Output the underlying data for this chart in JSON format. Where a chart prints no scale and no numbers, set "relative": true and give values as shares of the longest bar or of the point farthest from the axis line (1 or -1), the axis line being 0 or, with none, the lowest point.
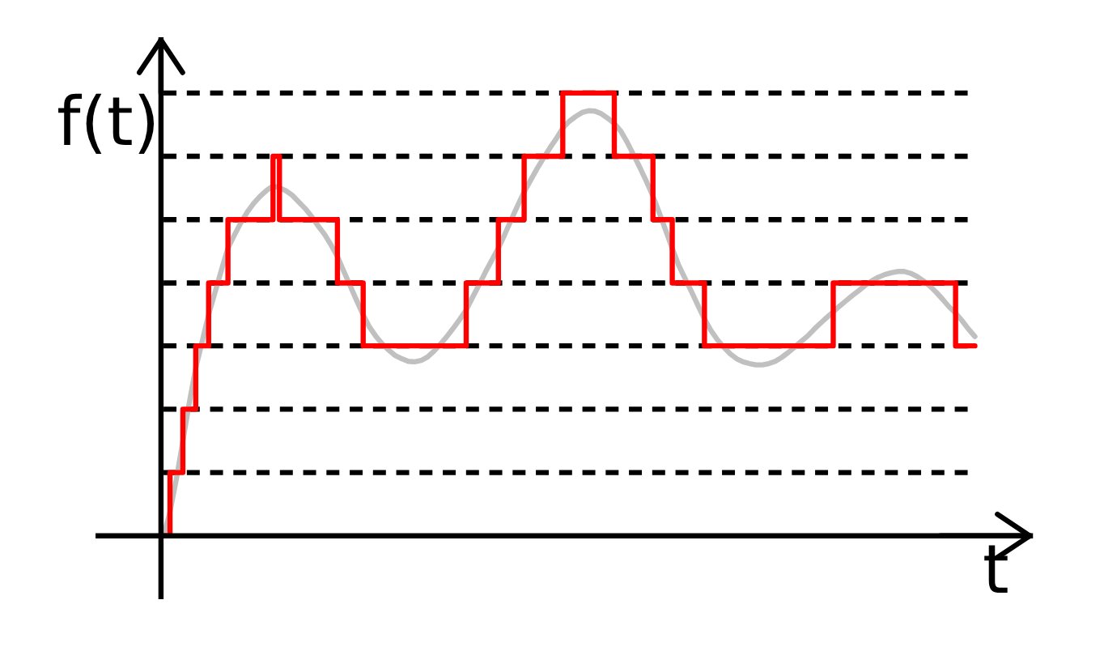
{
  "chart_data": {
    "type": "line",
    "xlabel": "t",
    "ylabel": "f(t)",
    "relative": true,
    "categories": [
      null,
      null,
      null,
      null,
      null,
      null,
      null,
      null,
      null,
      null,
      null,
      null,
      null,
      null,
      null,
      null,
      null,
      null,
      null,
      null,
      null,
      null,
      null,
      null,
      null,
      null,
      null,
      null,
      null,
      null,
      null,
      null,
      null,
      null,
      null,
      null,
      null,
      null,
      null,
      null,
      null,
      null,
      null,
      null,
      null,
      null,
      null,
      null,
      null,
      null,
      null,
      null,
      null,
      null,
      null,
      null,
      null,
      null,
      null,
      null,
      null,
      null,
      null,
      null,
      null,
      null,
      null,
      null,
      null,
      null,
      null,
      null,
      null,
      null,
      null,
      null,
      null,
      null,
      null,
      null,
      null,
      null,
      null,
      null,
      null,
      null,
      null,
      null,
      null,
      null,
      null,
      null,
      null,
      null,
      null,
      null,
      null,
      null,
      null,
      null,
      null,
      null,
      null,
      null,
      null,
      null,
      null,
      null,
      null,
      null,
      null,
      null,
      null,
      null,
      null,
      null,
      null,
      null,
      null,
      null,
      null,
      null,
      null,
      null,
      null,
      null,
      null
    ],
    "series": [
      {
        "type": "line",
        "color": "#c0c0c0",
        "values": [
          0,
          0.054,
          0.129,
          0.214,
          0.301,
          0.379,
          0.439,
          0.5,
          0.55,
          0.601,
          0.65,
          0.679,
          0.707,
          0.731,
          0.751,
          0.767,
          0.78,
          0.79,
          0.786,
          0.779,
          0.769,
          0.754,
          0.739,
          0.721,
          0.7,
          0.681,
          0.657,
          0.631,
          0.597,
          0.564,
          0.531,
          0.499,
          0.471,
          0.45,
          0.433,
          0.419,
          0.407,
          0.4,
          0.394,
          0.393,
          0.396,
          0.404,
          0.417,
          0.433,
          0.45,
          0.469,
          0.489,
          0.51,
          0.539,
          0.567,
          0.596,
          0.623,
          0.65,
          0.681,
          0.714,
          0.746,
          0.777,
          0.803,
          0.829,
          0.853,
          0.876,
          0.897,
          0.921,
          0.936,
          0.947,
          0.956,
          0.96,
          0.959,
          0.953,
          0.943,
          0.931,
          0.914,
          0.889,
          0.86,
          0.831,
          0.8,
          0.767,
          0.729,
          0.689,
          0.649,
          0.611,
          0.581,
          0.551,
          0.52,
          0.49,
          0.464,
          0.443,
          0.426,
          0.411,
          0.4,
          0.393,
          0.389,
          0.386,
          0.386,
          0.389,
          0.394,
          0.403,
          0.414,
          0.426,
          0.439,
          0.451,
          0.466,
          0.48,
          0.493,
          0.506,
          0.519,
          0.531,
          0.543,
          0.554,
          0.566,
          0.576,
          0.584,
          0.59,
          0.594,
          0.597,
          0.597,
          0.593,
          0.586,
          0.576,
          0.564,
          0.55,
          0.534,
          0.517,
          0.503,
          0.486,
          0.467,
          0.45
        ]
      },
      {
        "type": "step",
        "color": "#ff0000",
        "values": [
          0,
          0.143,
          0.143,
          0.286,
          0.286,
          0.429,
          0.429,
          0.571,
          0.571,
          0.571,
          0.714,
          0.714,
          0.714,
          0.714,
          0.714,
          0.714,
          0.714,
          0.857,
          0.714,
          0.714,
          0.714,
          0.714,
          0.714,
          0.714,
          0.714,
          0.714,
          0.714,
          0.571,
          0.571,
          0.571,
          0.571,
          0.429,
          0.429,
          0.429,
          0.429,
          0.429,
          0.429,
          0.429,
          0.429,
          0.429,
          0.429,
          0.429,
          0.429,
          0.429,
          0.429,
          0.429,
          0.429,
          0.571,
          0.571,
          0.571,
          0.571,
          0.571,
          0.714,
          0.714,
          0.714,
          0.714,
          0.857,
          0.857,
          0.857,
          0.857,
          0.857,
          0.857,
          1,
          1,
          1,
          1,
          1,
          1,
          1,
          1,
          0.857,
          0.857,
          0.857,
          0.857,
          0.857,
          0.857,
          0.714,
          0.714,
          0.714,
          0.571,
          0.571,
          0.571,
          0.571,
          0.571,
          0.429,
          0.429,
          0.429,
          0.429,
          0.429,
          0.429,
          0.429,
          0.429,
          0.429,
          0.429,
          0.429,
          0.429,
          0.429,
          0.429,
          0.429,
          0.429,
          0.429,
          0.429,
          0.429,
          0.429,
          0.571,
          0.571,
          0.571,
          0.571,
          0.571,
          0.571,
          0.571,
          0.571,
          0.571,
          0.571,
          0.571,
          0.571,
          0.571,
          0.571,
          0.571,
          0.571,
          0.571,
          0.571,
          0.571,
          0.429,
          0.429,
          0.429,
          0.429
        ]
      }
    ],
    "ref_lines": [
      {
        "axis": "y",
        "value": 0.143,
        "color": "#000000",
        "line_style": "dashed"
      },
      {
        "axis": "y",
        "value": 0.286,
        "color": "#000000",
        "line_style": "dashed"
      },
      {
        "axis": "y",
        "value": 0.429,
        "color": "#000000",
        "line_style": "dashed"
      },
      {
        "axis": "y",
        "value": 0.571,
        "color": "#000000",
        "line_style": "dashed"
      },
      {
        "axis": "y",
        "value": 0.714,
        "color": "#000000",
        "line_style": "dashed"
      },
      {
        "axis": "y",
        "value": 0.857,
        "color": "#000000",
        "line_style": "dashed"
      },
      {
        "axis": "y",
        "value": 1,
        "color": "#000000",
        "line_style": "dashed"
      }
    ]
  }
}
